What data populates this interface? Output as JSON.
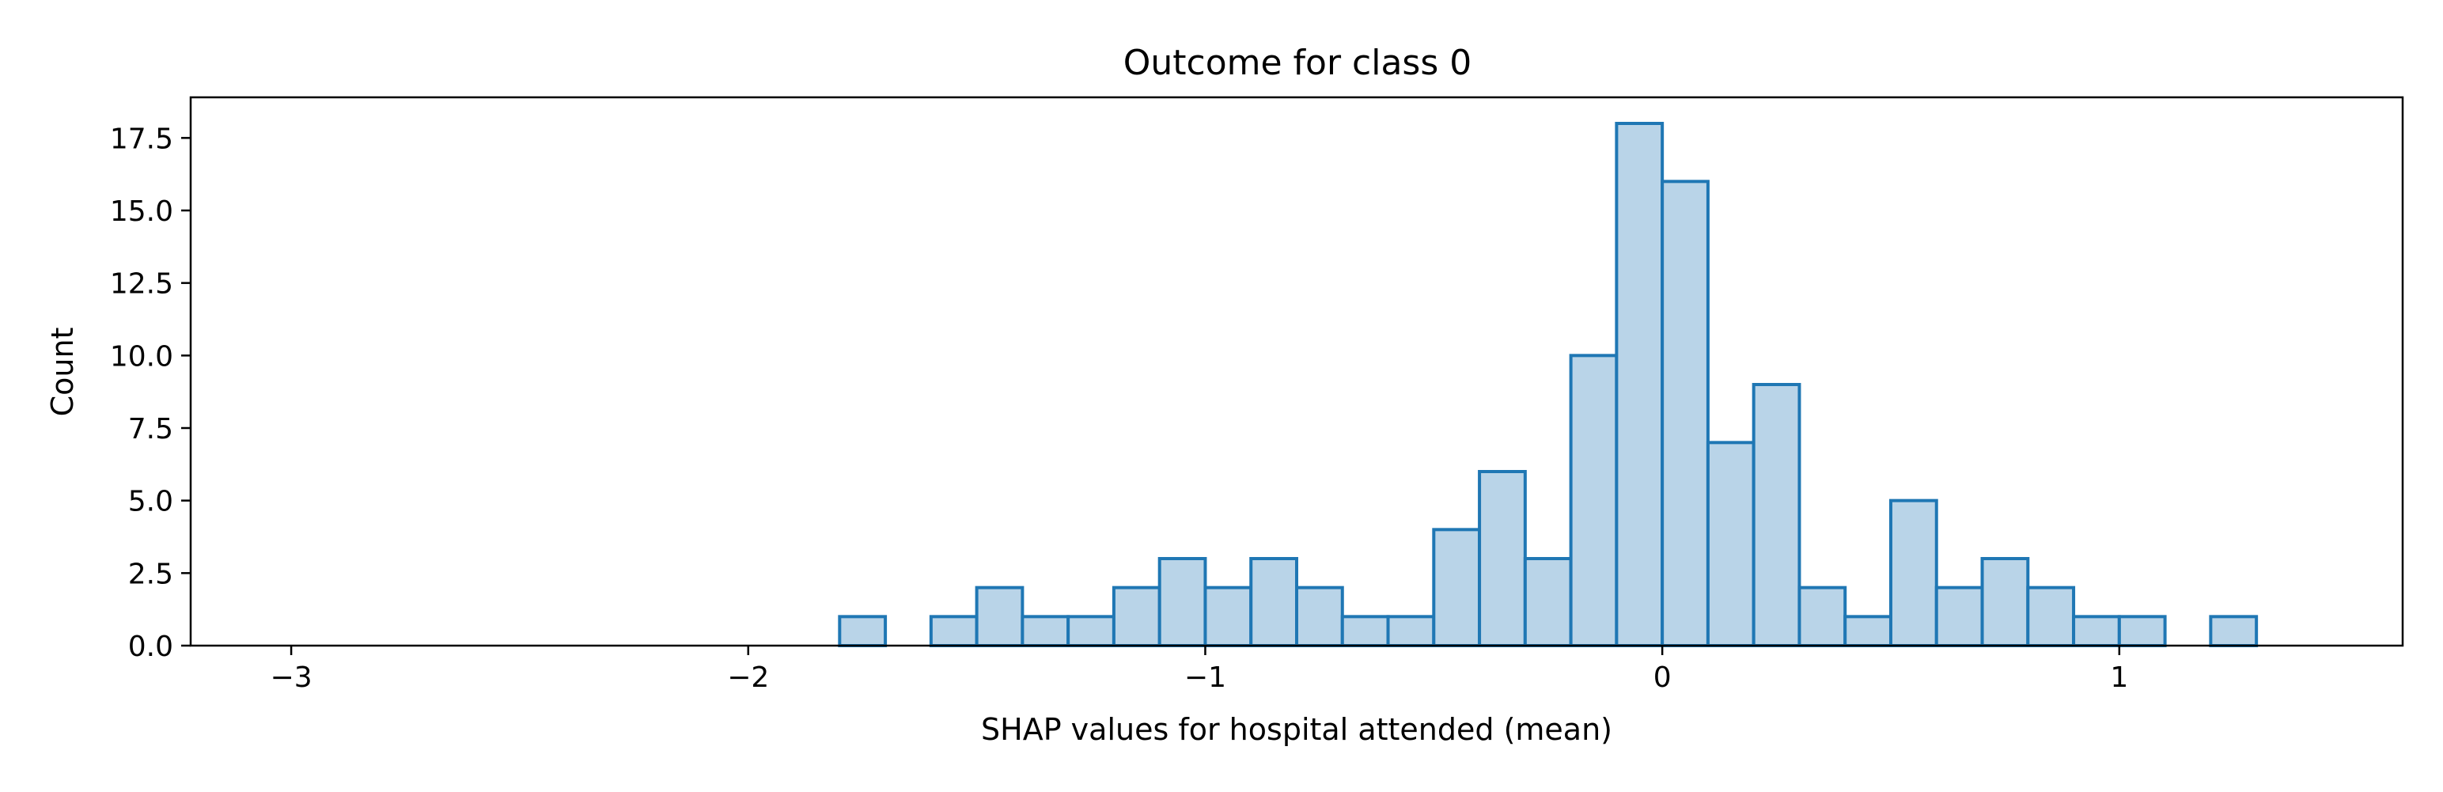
{
  "chart_data": {
    "type": "bar",
    "title": "Outcome for class 0",
    "xlabel": "SHAP values for hospital attended (mean)",
    "ylabel": "Count",
    "xlim": [
      -3.22,
      1.62
    ],
    "ylim": [
      0,
      18.9
    ],
    "xticks": [
      -3,
      -2,
      -1,
      0,
      1
    ],
    "xtick_labels": [
      "−3",
      "−2",
      "−1",
      "0",
      "1"
    ],
    "yticks": [
      0,
      2.5,
      5,
      7.5,
      10,
      12.5,
      15,
      17.5
    ],
    "ytick_labels": [
      "0.0",
      "2.5",
      "5.0",
      "7.5",
      "10.0",
      "12.5",
      "15.0",
      "17.5"
    ],
    "grid": false,
    "bin_start": -3.0,
    "bin_width": 0.1,
    "counts": [
      0,
      0,
      0,
      0,
      0,
      0,
      0,
      0,
      0,
      0,
      0,
      0,
      1,
      0,
      1,
      2,
      1,
      1,
      2,
      3,
      2,
      3,
      2,
      1,
      1,
      4,
      6,
      3,
      10,
      18,
      16,
      7,
      9,
      2,
      1,
      5,
      2,
      3,
      2,
      1,
      1,
      0,
      1,
      0
    ],
    "colors": {
      "bar_fill": "#b9d4e8",
      "bar_edge": "#1f77b4",
      "axes": "#000000"
    }
  }
}
